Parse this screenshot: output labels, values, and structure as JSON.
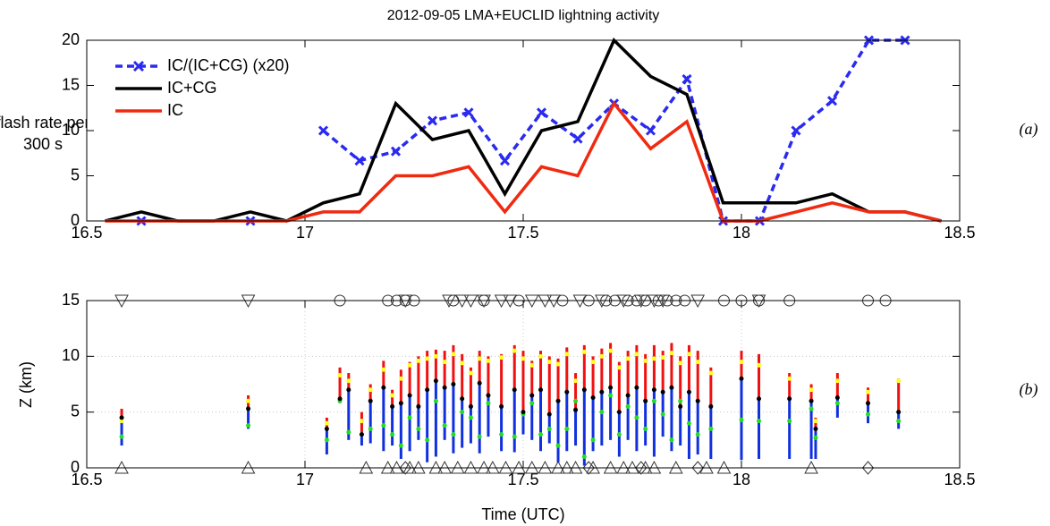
{
  "chart_data": [
    {
      "type": "line",
      "title": "2012-09-05 LMA+EUCLID lightning activity",
      "ylabel": [
        "flash rate per",
        "300 s"
      ],
      "panel_label": "(a)",
      "xlim": [
        16.5,
        18.5
      ],
      "xticks": [
        16.5,
        17,
        17.5,
        18,
        18.5
      ],
      "ylim": [
        0,
        20
      ],
      "yticks": [
        0,
        5,
        10,
        15,
        20
      ],
      "grid": false,
      "legend": "upper left",
      "x": [
        16.542,
        16.625,
        16.708,
        16.792,
        16.875,
        16.958,
        17.042,
        17.125,
        17.208,
        17.292,
        17.375,
        17.458,
        17.542,
        17.625,
        17.708,
        17.792,
        17.875,
        17.958,
        18.042,
        18.125,
        18.208,
        18.292,
        18.375,
        18.458
      ],
      "series": [
        {
          "name": "IC/(IC+CG) (x20)",
          "color": "#2a2af0",
          "dashed": true,
          "marker": "x",
          "values": [
            null,
            0,
            null,
            null,
            0,
            null,
            10,
            6.67,
            7.7,
            11.1,
            12,
            6.67,
            12,
            9.1,
            13,
            10,
            15.7,
            0,
            0,
            10,
            13.3,
            20,
            20,
            null
          ]
        },
        {
          "name": "IC+CG",
          "color": "#000000",
          "dashed": false,
          "values": [
            0,
            1,
            0,
            0,
            1,
            0,
            2,
            3,
            13,
            9,
            10,
            3,
            10,
            11,
            20,
            16,
            14,
            2,
            2,
            2,
            3,
            1,
            1,
            0
          ]
        },
        {
          "name": "IC",
          "color": "#f02a10",
          "dashed": false,
          "values": [
            0,
            0,
            0,
            0,
            0,
            0,
            1,
            1,
            5,
            5,
            6,
            1,
            6,
            5,
            13,
            8,
            11,
            0,
            0,
            1,
            2,
            1,
            1,
            0
          ]
        }
      ]
    },
    {
      "type": "range",
      "ylabel": "Z (km)",
      "xlabel": "Time (UTC)",
      "panel_label": "(b)",
      "xlim": [
        16.5,
        18.5
      ],
      "xticks": [
        16.5,
        17,
        17.5,
        18,
        18.5
      ],
      "ylim": [
        0,
        15
      ],
      "yticks": [
        0,
        5,
        10,
        15
      ],
      "grid": true,
      "colors": {
        "lower": "#1030e0",
        "upper": "#f01010",
        "mid": "#000000",
        "upper_dot": "#ffff20",
        "lower_dot": "#20e020"
      },
      "x": [
        16.58,
        16.87,
        17.05,
        17.08,
        17.1,
        17.13,
        17.15,
        17.18,
        17.2,
        17.22,
        17.24,
        17.26,
        17.28,
        17.3,
        17.32,
        17.34,
        17.36,
        17.38,
        17.4,
        17.42,
        17.45,
        17.48,
        17.5,
        17.52,
        17.54,
        17.56,
        17.58,
        17.6,
        17.62,
        17.64,
        17.66,
        17.68,
        17.7,
        17.72,
        17.74,
        17.76,
        17.78,
        17.8,
        17.82,
        17.84,
        17.86,
        17.88,
        17.9,
        17.93,
        18.0,
        18.04,
        18.11,
        18.16,
        18.17,
        18.22,
        18.29,
        18.36
      ],
      "z_min": [
        2,
        3.5,
        1.2,
        5.8,
        2.5,
        2,
        2.2,
        1.5,
        2,
        0.8,
        1.5,
        2.5,
        0.5,
        1,
        2.5,
        1.3,
        1.8,
        2.2,
        1.3,
        2.8,
        1.5,
        1.4,
        3,
        2.5,
        1.5,
        2.2,
        0.5,
        1.5,
        2,
        0.2,
        1.5,
        2,
        2.5,
        1,
        2.5,
        1.5,
        2,
        1,
        2.8,
        1.5,
        2,
        0.8,
        1.2,
        0.8,
        0.7,
        0.8,
        0.8,
        0.8,
        0.8,
        4.5,
        4,
        3.5
      ],
      "z_mid": [
        4.5,
        5.3,
        3.5,
        6.2,
        7,
        3,
        6,
        7.2,
        5.5,
        5.8,
        6.5,
        5.5,
        7,
        7.8,
        7.2,
        7.5,
        6.2,
        5.5,
        7.6,
        6.5,
        5.5,
        7,
        5,
        6.5,
        7,
        4.8,
        6,
        6.8,
        5.2,
        7,
        6.3,
        6.8,
        7.2,
        5,
        6.5,
        7.2,
        6,
        7,
        6.8,
        7.2,
        5.5,
        6.8,
        6,
        5.5,
        8,
        6.2,
        6.2,
        6,
        3.5,
        6.3,
        5.8,
        5
      ],
      "z_max": [
        5.3,
        6.5,
        4.5,
        9,
        8.5,
        5,
        7.5,
        9.6,
        7,
        8.8,
        9.5,
        10,
        10.5,
        10.6,
        10.5,
        11,
        10.2,
        9,
        10.5,
        10,
        10.2,
        11,
        10.5,
        9.6,
        10.5,
        10,
        9.8,
        10.8,
        8.5,
        11,
        10,
        10.7,
        11.2,
        9.5,
        10.5,
        11,
        10.2,
        11,
        10.5,
        11.2,
        10,
        11,
        10.5,
        9,
        10.5,
        10.2,
        8.5,
        7.5,
        4.5,
        8.5,
        7.2,
        8
      ],
      "z_upper": [
        4.2,
        6,
        4,
        8.3,
        7.8,
        4.2,
        7,
        8.8,
        6.5,
        8,
        9.2,
        9.6,
        9.8,
        10,
        9.5,
        10.2,
        9.4,
        8.5,
        9.8,
        9.6,
        9.9,
        10.5,
        9.8,
        9.2,
        10,
        9.5,
        9.3,
        10.2,
        7.8,
        10.4,
        9.5,
        10,
        10.5,
        9,
        9.8,
        10.2,
        9.6,
        9.8,
        9.9,
        10.3,
        9.4,
        10.2,
        9.5,
        8.5,
        9.5,
        9.2,
        8,
        7,
        4.2,
        7.8,
        6.8,
        7.8
      ],
      "z_lower": [
        2.8,
        3.8,
        2.5,
        6,
        3.2,
        3,
        3.5,
        3.8,
        3,
        2,
        4.5,
        3.5,
        2.5,
        6,
        3.8,
        3,
        5,
        4.5,
        2.8,
        5.8,
        3,
        2.8,
        4.8,
        5.8,
        3,
        3.5,
        2,
        3.5,
        6,
        1,
        2.5,
        5,
        6.5,
        3,
        5.5,
        4.5,
        3.5,
        6,
        4.8,
        2.5,
        6,
        4,
        3,
        3.5,
        4.3,
        4.2,
        4.2,
        5.3,
        2.7,
        5.8,
        4.8,
        4.2
      ],
      "markers": [
        {
          "shape": "triangle-down",
          "z": 15,
          "x": [
            16.58,
            16.87,
            17.23,
            17.33,
            17.36,
            17.38,
            17.41,
            17.45,
            17.47,
            17.52,
            17.55,
            17.57,
            17.63,
            17.68,
            17.73,
            17.77,
            17.8,
            17.82,
            17.9,
            18.04
          ]
        },
        {
          "shape": "circle",
          "z": 15,
          "x": [
            17.08,
            17.19,
            17.21,
            17.23,
            17.25,
            17.34,
            17.41,
            17.49,
            17.59,
            17.65,
            17.69,
            17.71,
            17.74,
            17.76,
            17.78,
            17.81,
            17.83,
            17.85,
            17.87,
            17.96,
            18.0,
            18.04,
            18.11,
            18.29,
            18.33
          ]
        },
        {
          "shape": "triangle-up",
          "z": 0,
          "x": [
            16.58,
            16.87,
            17.14,
            17.19,
            17.21,
            17.24,
            17.26,
            17.3,
            17.32,
            17.35,
            17.38,
            17.41,
            17.43,
            17.46,
            17.49,
            17.52,
            17.55,
            17.58,
            17.6,
            17.62,
            17.66,
            17.7,
            17.73,
            17.75,
            17.78,
            17.8,
            17.85,
            17.92,
            17.96,
            18.16
          ]
        },
        {
          "shape": "diamond",
          "z": 0,
          "x": [
            17.23,
            17.65,
            17.77,
            17.9,
            18.29
          ]
        }
      ]
    }
  ]
}
